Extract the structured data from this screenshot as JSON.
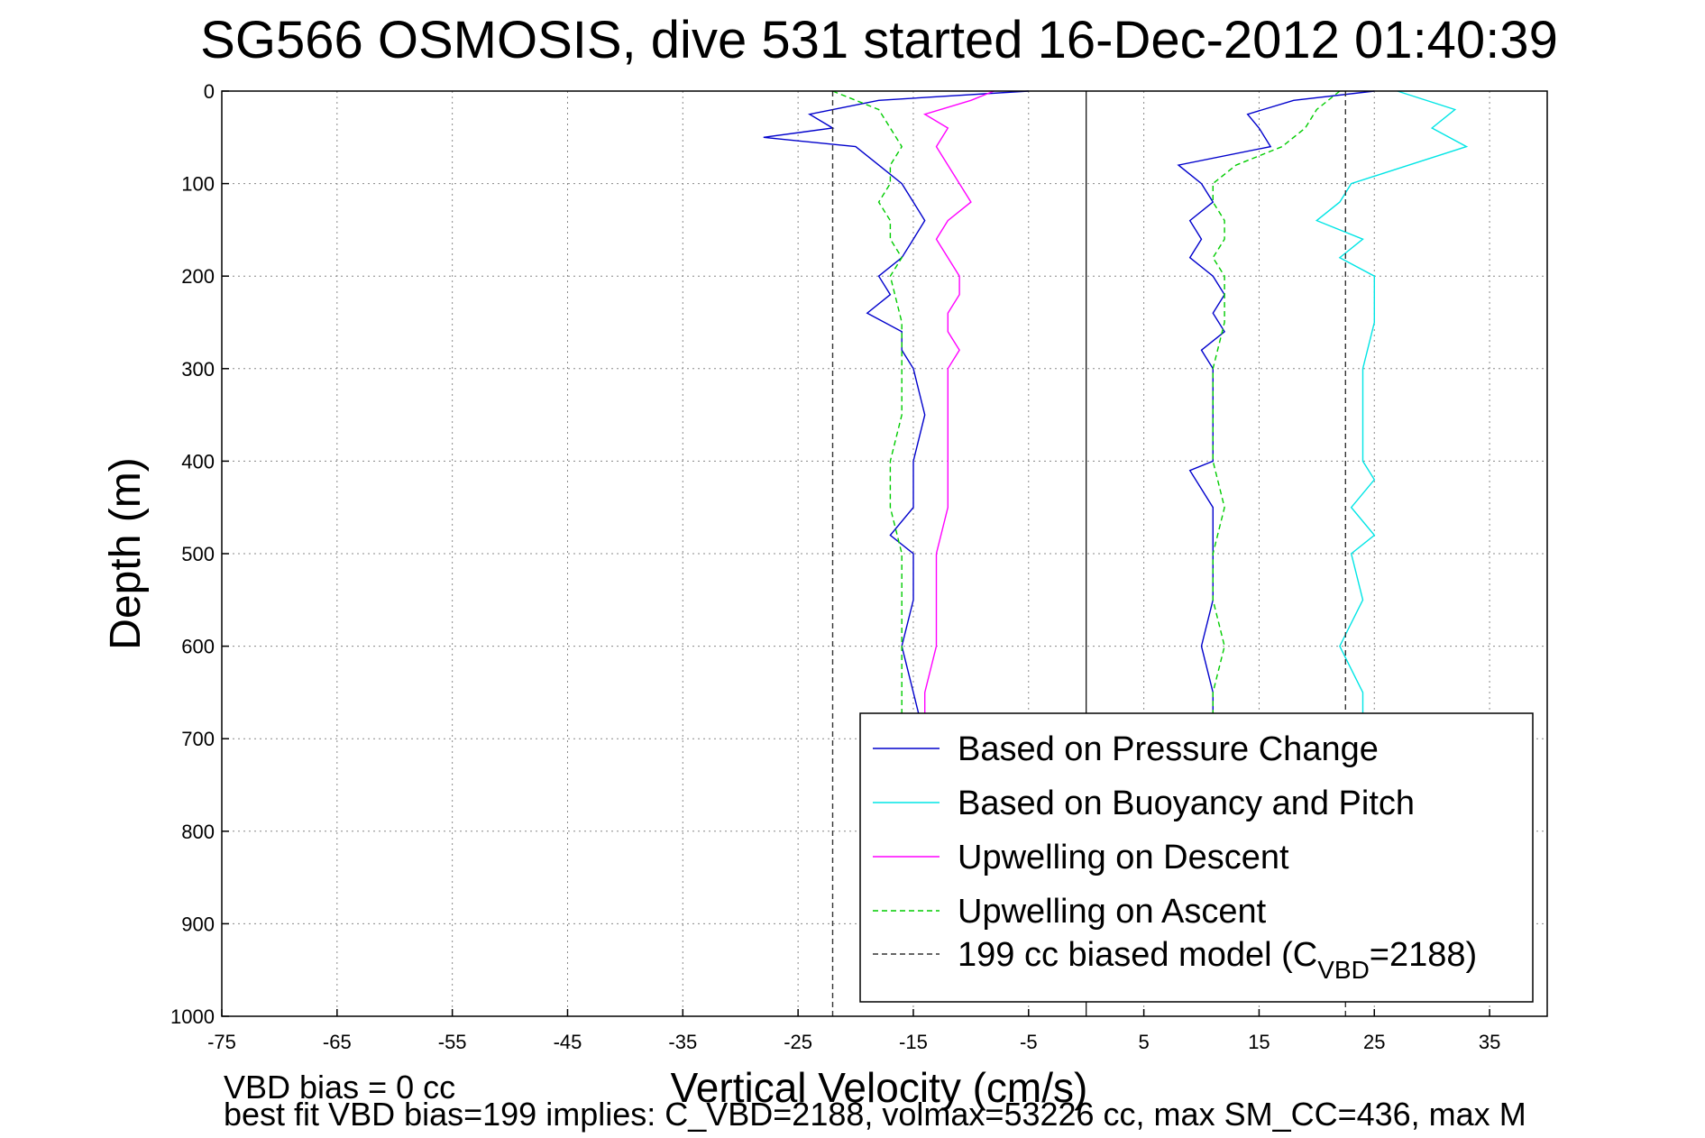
{
  "chart_data": {
    "type": "line",
    "title": "SG566 OSMOSIS, dive 531 started 16-Dec-2012 01:40:39",
    "xlabel": "Vertical Velocity (cm/s)",
    "ylabel": "Depth (m)",
    "xlim": [
      -75,
      40
    ],
    "ylim": [
      0,
      1000
    ],
    "y_reversed": true,
    "grid": true,
    "x_ticks": [
      -75,
      -65,
      -55,
      -45,
      -35,
      -25,
      -15,
      -5,
      5,
      15,
      25,
      35
    ],
    "y_ticks": [
      0,
      100,
      200,
      300,
      400,
      500,
      600,
      700,
      800,
      900,
      1000
    ],
    "legend": {
      "placement": "bottom-right",
      "entries": [
        {
          "label": "Based on Pressure Change"
        },
        {
          "label": "Based on Buoyancy and Pitch"
        },
        {
          "label": "Upwelling on Descent"
        },
        {
          "label": "Upwelling on Ascent"
        },
        {
          "label_main": "199 cc biased model (C",
          "label_sub": "VBD",
          "label_tail": "=2188)"
        }
      ]
    },
    "series": [
      {
        "name": "Based on Pressure Change",
        "color": "#0000cc",
        "style": "solid",
        "segments": [
          {
            "depth": [
              0,
              10,
              25,
              40,
              50,
              60,
              80,
              100,
              120,
              140,
              160,
              180,
              200,
              220,
              240,
              260,
              280,
              300,
              350,
              400,
              450,
              480,
              500,
              550,
              600,
              650,
              700
            ],
            "velocity": [
              -5,
              -18,
              -24,
              -22,
              -28,
              -20,
              -18,
              -16,
              -15,
              -14,
              -15,
              -16,
              -18,
              -17,
              -19,
              -16,
              -16,
              -15,
              -14,
              -15,
              -15,
              -17,
              -15,
              -15,
              -16,
              -15,
              -14
            ]
          },
          {
            "depth": [
              0,
              10,
              25,
              40,
              60,
              80,
              100,
              120,
              140,
              160,
              180,
              200,
              220,
              240,
              260,
              280,
              300,
              350,
              400,
              410,
              450,
              500,
              550,
              600,
              650,
              700
            ],
            "velocity": [
              25,
              18,
              14,
              15,
              16,
              8,
              10,
              11,
              9,
              10,
              9,
              11,
              12,
              11,
              12,
              10,
              11,
              11,
              11,
              9,
              11,
              11,
              11,
              10,
              11,
              11
            ]
          }
        ]
      },
      {
        "name": "Based on Buoyancy and Pitch",
        "color": "#00e5e5",
        "style": "solid",
        "segments": [
          {
            "depth": [
              0,
              20,
              40,
              60,
              80,
              100,
              120,
              140,
              160,
              180,
              200,
              250,
              300,
              350,
              400,
              420,
              450,
              480,
              500,
              550,
              600,
              650,
              700
            ],
            "velocity": [
              27,
              32,
              30,
              33,
              28,
              23,
              22,
              20,
              24,
              22,
              25,
              25,
              24,
              24,
              24,
              25,
              23,
              25,
              23,
              24,
              22,
              24,
              24
            ]
          }
        ]
      },
      {
        "name": "Upwelling on Descent",
        "color": "#ff00ff",
        "style": "solid",
        "segments": [
          {
            "depth": [
              0,
              10,
              25,
              40,
              60,
              80,
              100,
              120,
              140,
              160,
              180,
              200,
              220,
              240,
              260,
              280,
              300,
              350,
              400,
              450,
              500,
              550,
              600,
              650,
              700
            ],
            "velocity": [
              -8,
              -10,
              -14,
              -12,
              -13,
              -12,
              -11,
              -10,
              -12,
              -13,
              -12,
              -11,
              -11,
              -12,
              -12,
              -11,
              -12,
              -12,
              -12,
              -12,
              -13,
              -13,
              -13,
              -14,
              -14
            ]
          }
        ]
      },
      {
        "name": "Upwelling on Ascent",
        "color": "#00cc00",
        "style": "dashed",
        "segments": [
          {
            "depth": [
              0,
              20,
              40,
              60,
              80,
              100,
              120,
              140,
              160,
              180,
              200,
              250,
              300,
              350,
              400,
              450,
              500,
              550,
              600,
              650,
              700
            ],
            "velocity": [
              -22,
              -18,
              -17,
              -16,
              -17,
              -17,
              -18,
              -17,
              -17,
              -16,
              -17,
              -16,
              -16,
              -16,
              -17,
              -17,
              -16,
              -16,
              -16,
              -16,
              -16
            ]
          },
          {
            "depth": [
              0,
              20,
              40,
              60,
              80,
              100,
              120,
              140,
              160,
              180,
              200,
              250,
              300,
              350,
              400,
              450,
              500,
              550,
              600,
              650,
              700
            ],
            "velocity": [
              22,
              20,
              19,
              17,
              13,
              11,
              11,
              12,
              12,
              11,
              12,
              12,
              11,
              11,
              11,
              12,
              11,
              11,
              12,
              11,
              11
            ]
          }
        ]
      },
      {
        "name": "199 cc biased model (C_VBD=2188)",
        "color": "#333333",
        "style": "dashed",
        "segments": [
          {
            "depth": [
              0,
              1000
            ],
            "velocity": [
              -22,
              -22
            ]
          },
          {
            "depth": [
              0,
              1000
            ],
            "velocity": [
              22.5,
              22.5
            ]
          }
        ]
      }
    ],
    "reference_line": {
      "velocity": 0,
      "color": "#000000"
    },
    "notes": [
      "VBD bias = 0 cc",
      "best fit VBD bias=199 implies: C_VBD=2188, volmax=53226 cc, max SM_CC=436, max M"
    ]
  }
}
